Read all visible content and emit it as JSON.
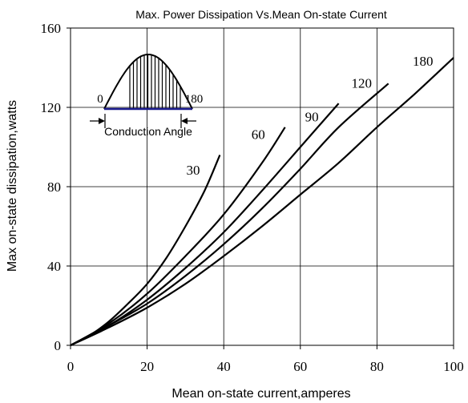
{
  "chart_data": {
    "type": "line",
    "title": "Max. Power Dissipation Vs.Mean On-state Current",
    "xlabel": "Mean on-state current,amperes",
    "ylabel": "Max on-state dissipation,watts",
    "xlim": [
      0,
      100
    ],
    "ylim": [
      0,
      160
    ],
    "x_ticks": [
      0,
      20,
      40,
      60,
      80,
      100
    ],
    "y_ticks": [
      0,
      40,
      80,
      120,
      160
    ],
    "grid": true,
    "series": [
      {
        "name": "30",
        "label_at": [
          32,
          86
        ],
        "points": [
          [
            0,
            0
          ],
          [
            5,
            5
          ],
          [
            10,
            12
          ],
          [
            15,
            21
          ],
          [
            20,
            31
          ],
          [
            25,
            44
          ],
          [
            30,
            60
          ],
          [
            35,
            78
          ],
          [
            39,
            96
          ]
        ]
      },
      {
        "name": "60",
        "label_at": [
          49,
          104
        ],
        "points": [
          [
            0,
            0
          ],
          [
            10,
            11
          ],
          [
            20,
            26
          ],
          [
            30,
            45
          ],
          [
            40,
            66
          ],
          [
            50,
            92
          ],
          [
            56,
            110
          ]
        ]
      },
      {
        "name": "90",
        "label_at": [
          63,
          113
        ],
        "points": [
          [
            0,
            0
          ],
          [
            10,
            10
          ],
          [
            20,
            23
          ],
          [
            30,
            39
          ],
          [
            40,
            57
          ],
          [
            50,
            78
          ],
          [
            60,
            100
          ],
          [
            70,
            122
          ]
        ]
      },
      {
        "name": "120",
        "label_at": [
          76,
          130
        ],
        "points": [
          [
            0,
            0
          ],
          [
            10,
            10
          ],
          [
            20,
            21
          ],
          [
            30,
            35
          ],
          [
            40,
            51
          ],
          [
            50,
            69
          ],
          [
            60,
            89
          ],
          [
            70,
            110
          ],
          [
            83,
            132
          ]
        ]
      },
      {
        "name": "180",
        "label_at": [
          92,
          141
        ],
        "points": [
          [
            0,
            0
          ],
          [
            10,
            9
          ],
          [
            20,
            19
          ],
          [
            30,
            31
          ],
          [
            40,
            45
          ],
          [
            50,
            60
          ],
          [
            60,
            76
          ],
          [
            70,
            92
          ],
          [
            80,
            110
          ],
          [
            90,
            127
          ],
          [
            100,
            145
          ]
        ]
      }
    ],
    "inset": {
      "left_label": "0",
      "right_label": "180",
      "caption": "Conduction Angle"
    }
  }
}
